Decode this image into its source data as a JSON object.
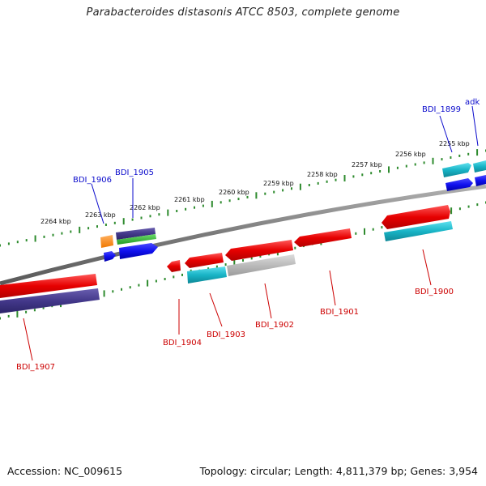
{
  "title": "Parabacteroides distasonis ATCC 8503, complete genome",
  "footer": {
    "accession": "Accession: NC_009615",
    "info": "Topology: circular; Length: 4,811,379 bp; Genes: 3,954"
  },
  "ticks": [
    "2255 kbp",
    "2256 kbp",
    "2257 kbp",
    "2258 kbp",
    "2259 kbp",
    "2260 kbp",
    "2261 kbp",
    "2262 kbp",
    "2263 kbp",
    "2264 kbp"
  ],
  "genes_top": [
    "BDI_1899",
    "adk",
    "BDI_1906",
    "BDI_1905"
  ],
  "genes_bottom": [
    "BDI_1900",
    "BDI_1901",
    "BDI_1902",
    "BDI_1903",
    "BDI_1904",
    "BDI_1907"
  ],
  "colors": {
    "backbone": "#888888",
    "dots": "#2e8b2e",
    "red": "#ee1111",
    "cyan": "#22bbcc",
    "navy": "#4a3f8c",
    "blue": "#1010ee",
    "green": "#33bb33",
    "orange": "#ff8c1a",
    "gray": "#b8b8b8",
    "label_blue": "#0b0bcc",
    "label_red": "#cc0000"
  }
}
